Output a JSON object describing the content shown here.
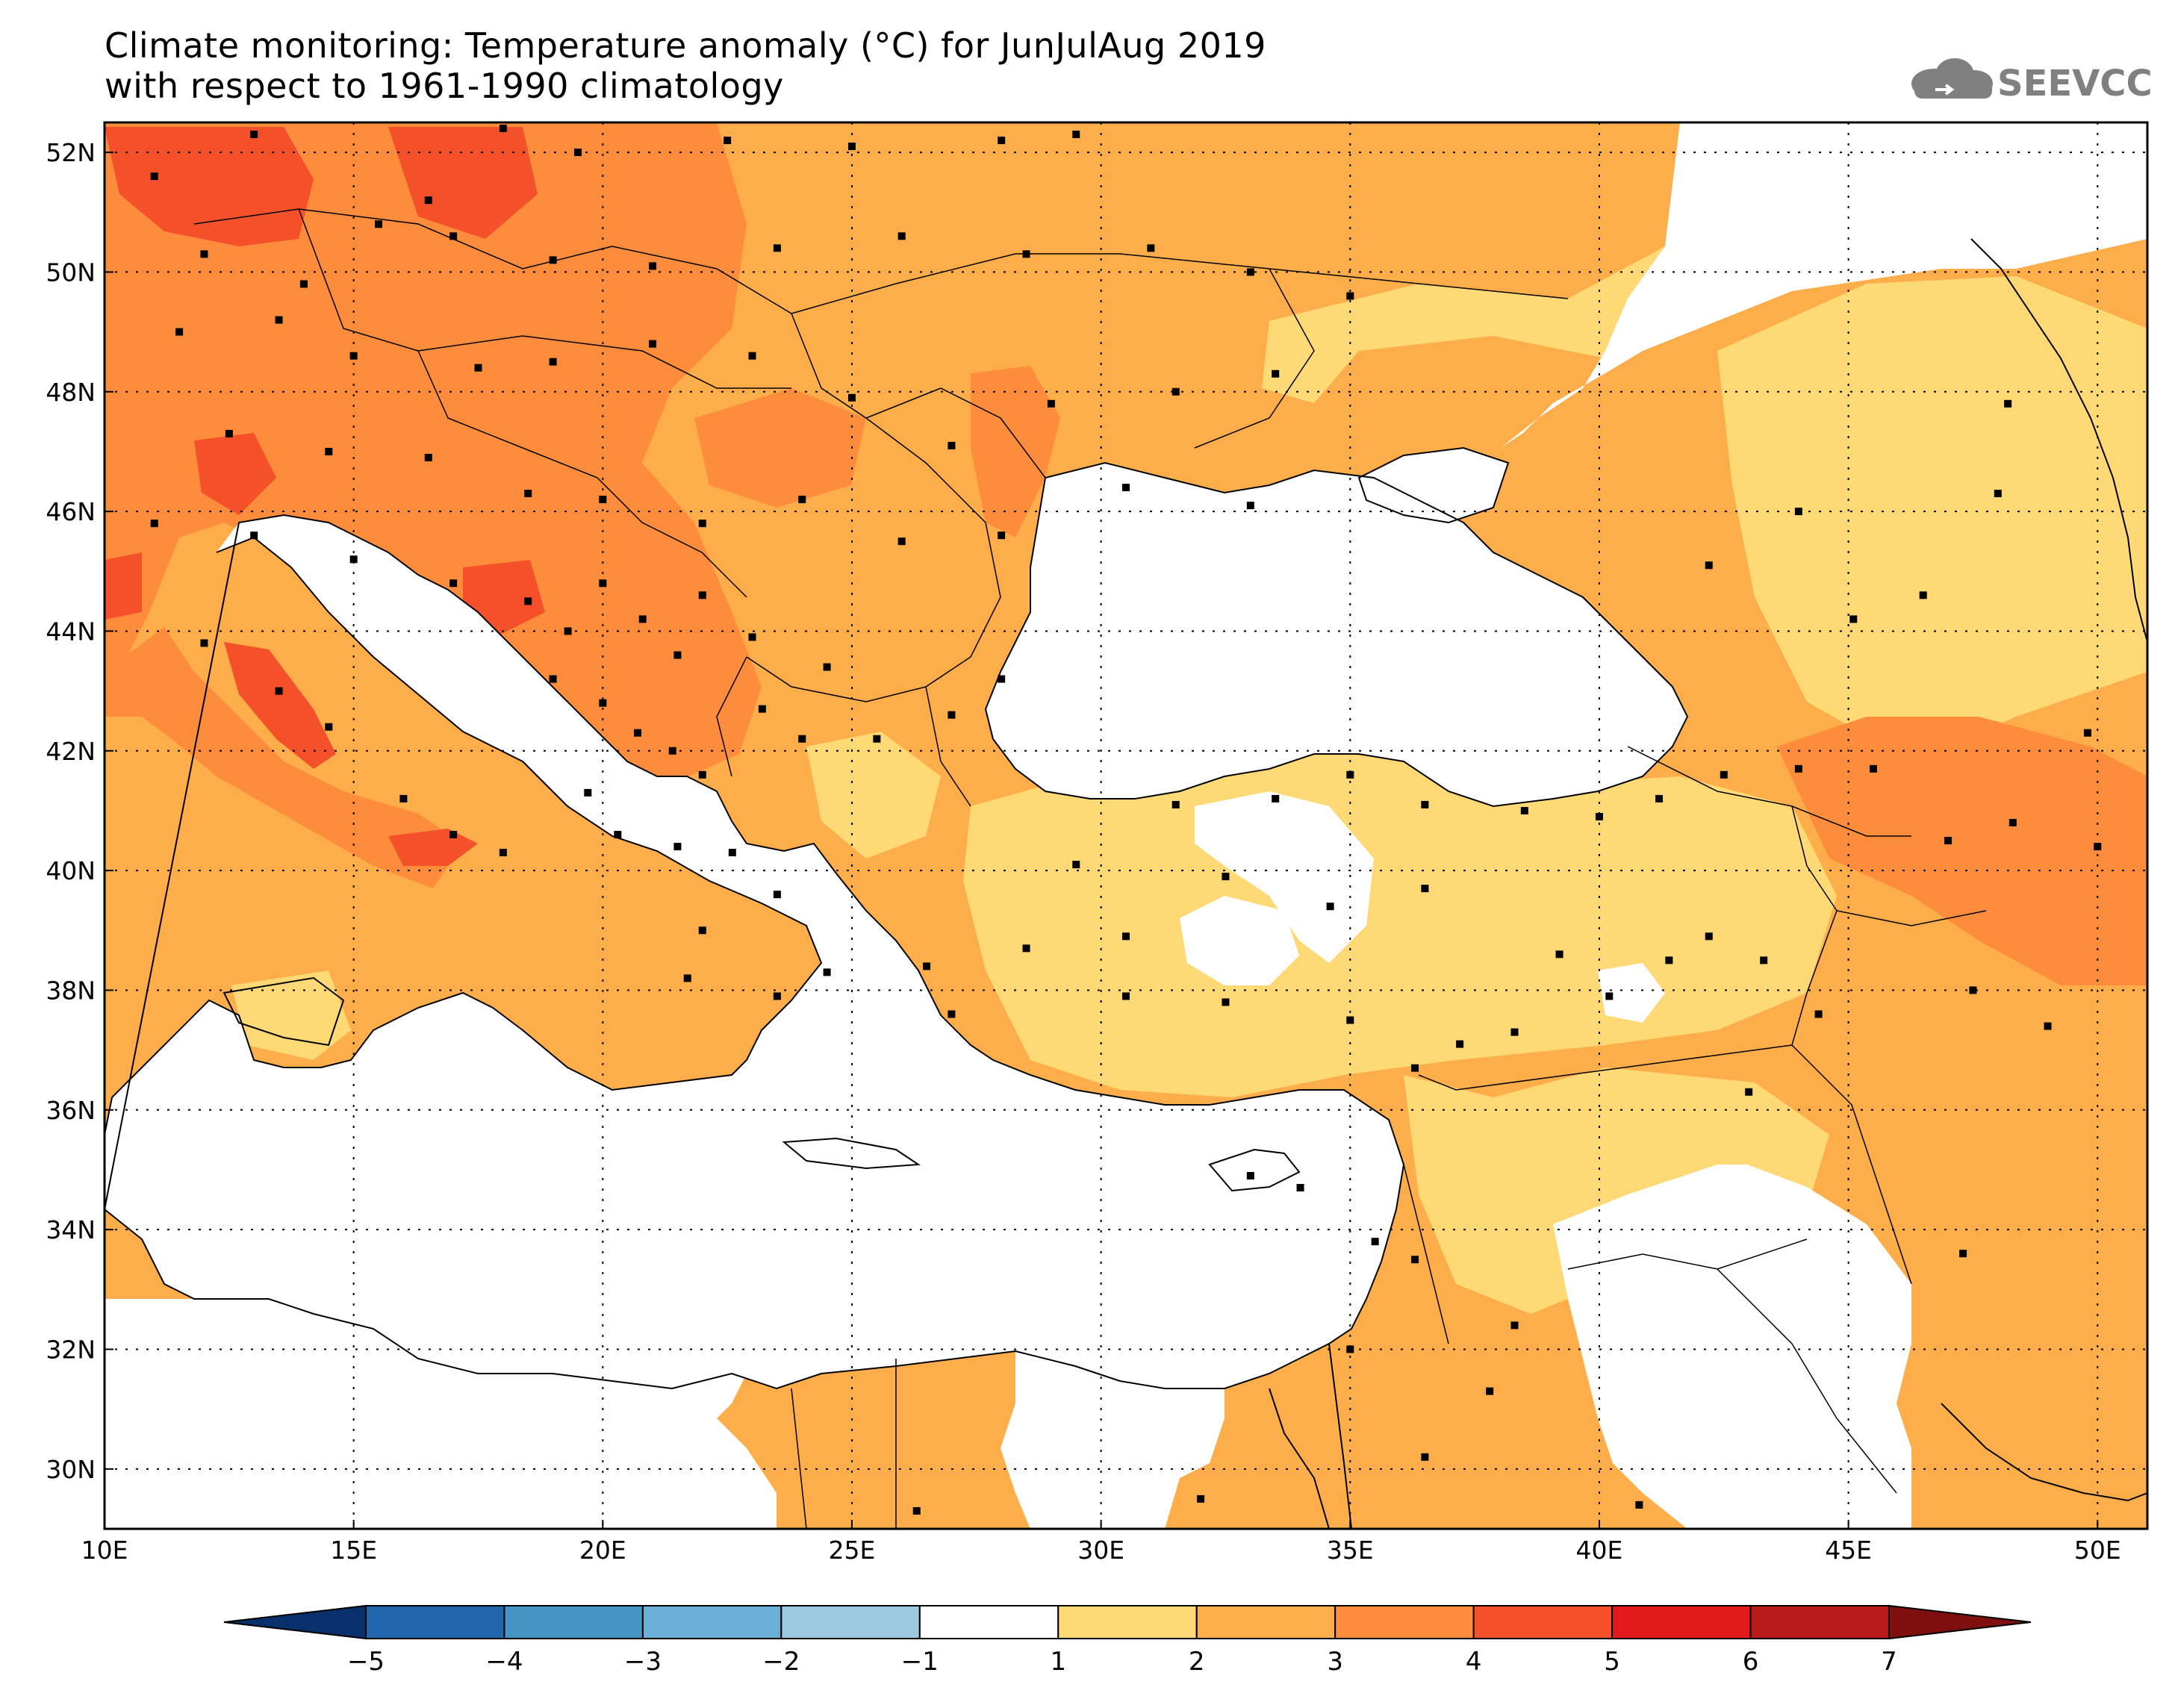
{
  "title": {
    "line1": "Climate monitoring: Temperature anomaly (°C) for JunJulAug 2019",
    "line2": "with respect to 1961-1990 climatology"
  },
  "logo": {
    "text": "SEEVCCC",
    "icon": "cloud-icon",
    "color": "#808080"
  },
  "map": {
    "lon_range": [
      10,
      51
    ],
    "lat_range": [
      29,
      52.5
    ],
    "x_ticks": [
      {
        "value": 10,
        "label": "10E"
      },
      {
        "value": 15,
        "label": "15E"
      },
      {
        "value": 20,
        "label": "20E"
      },
      {
        "value": 25,
        "label": "25E"
      },
      {
        "value": 30,
        "label": "30E"
      },
      {
        "value": 35,
        "label": "35E"
      },
      {
        "value": 40,
        "label": "40E"
      },
      {
        "value": 45,
        "label": "45E"
      },
      {
        "value": 50,
        "label": "50E"
      }
    ],
    "y_ticks": [
      {
        "value": 52,
        "label": "52N"
      },
      {
        "value": 50,
        "label": "50N"
      },
      {
        "value": 48,
        "label": "48N"
      },
      {
        "value": 46,
        "label": "46N"
      },
      {
        "value": 44,
        "label": "44N"
      },
      {
        "value": 42,
        "label": "42N"
      },
      {
        "value": 40,
        "label": "40N"
      },
      {
        "value": 38,
        "label": "38N"
      },
      {
        "value": 36,
        "label": "36N"
      },
      {
        "value": 34,
        "label": "34N"
      },
      {
        "value": 32,
        "label": "32N"
      },
      {
        "value": 30,
        "label": "30N"
      }
    ],
    "gridlines": "dotted"
  },
  "colorbar": {
    "labels": [
      "-5",
      "-4",
      "-3",
      "-2",
      "-1",
      "1",
      "2",
      "3",
      "4",
      "5",
      "6",
      "7"
    ],
    "colors": [
      "#08306b",
      "#2166ac",
      "#4393c3",
      "#6baed6",
      "#9ecae1",
      "#ffffff",
      "#fed976",
      "#fdae4b",
      "#fd8d3c",
      "#f4512b",
      "#e31a1c",
      "#b91c1c",
      "#800f0f"
    ]
  },
  "legend_colors": {
    "band_1_2": "#fed976",
    "band_2_3": "#fdae4b",
    "band_3_4": "#fd8d3c",
    "band_4_5": "#f4512b",
    "station": "#000000",
    "border": "#000000"
  }
}
